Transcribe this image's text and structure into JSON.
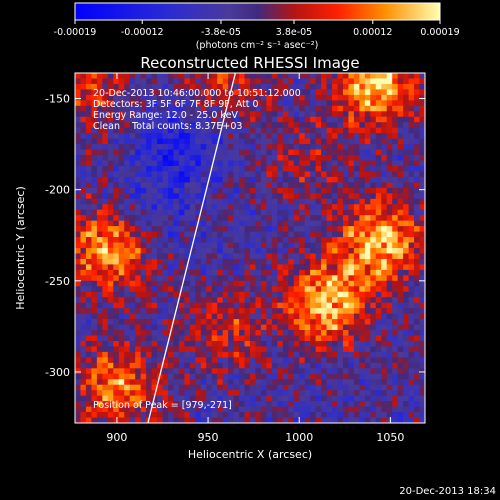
{
  "chart_data": {
    "type": "heatmap",
    "title": "Reconstructed RHESSI Image",
    "xlabel": "Heliocentric X (arcsec)",
    "ylabel": "Heliocentric Y (arcsec)",
    "xlim": [
      877,
      1069
    ],
    "ylim": [
      -328,
      -136
    ],
    "x_ticks": [
      900,
      950,
      1000,
      1050
    ],
    "y_ticks": [
      -150,
      -200,
      -250,
      -300
    ],
    "colorbar": {
      "ticks": [
        "-0.00019",
        "-0.00012",
        "-3.8e-05",
        "3.8e-05",
        "0.00012",
        "0.00019"
      ],
      "tick_values": [
        -0.00019,
        -0.00012,
        -3.8e-05,
        3.8e-05,
        0.00012,
        0.00019
      ],
      "range": [
        -0.00019,
        0.00019
      ],
      "unit_label": "(photons cm⁻² s⁻¹ asec⁻²)"
    },
    "info_lines": [
      "20-Dec-2013 10:46:00.000 to 10:51:12.000",
      "Detectors: 3F 5F 6F 7F 8F 9F, Att 0",
      "Energy Range: 12.0 - 25.0 keV",
      "Clean    Total counts: 8.37E+03"
    ],
    "peak_label": "Position of Peak = [979,-271]",
    "peak_position": [
      979,
      -271
    ],
    "limb_curve": {
      "x": [
        917,
        925,
        933,
        941,
        949,
        957,
        965
      ],
      "y": [
        -328,
        -296,
        -264,
        -232,
        -200,
        -168,
        -136
      ]
    },
    "sources": [
      {
        "x": 1015,
        "y": -262,
        "amp": 0.00019
      },
      {
        "x": 1045,
        "y": -228,
        "amp": 0.00018
      },
      {
        "x": 1042,
        "y": -142,
        "amp": 0.00019
      },
      {
        "x": 895,
        "y": -232,
        "amp": 0.00016
      },
      {
        "x": 900,
        "y": -308,
        "amp": 0.00014
      },
      {
        "x": 960,
        "y": -278,
        "amp": 8e-05
      },
      {
        "x": 1005,
        "y": -185,
        "amp": 6e-05
      },
      {
        "x": 960,
        "y": -140,
        "amp": 9e-05
      },
      {
        "x": 884,
        "y": -145,
        "amp": 9e-05
      },
      {
        "x": 935,
        "y": -175,
        "amp": -9e-05
      },
      {
        "x": 920,
        "y": -210,
        "amp": -5e-05
      }
    ]
  },
  "footer": {
    "timestamp": "20-Dec-2013 18:34"
  },
  "colors": {
    "background": "#000000",
    "axes": "#ffffff",
    "text": "#ffffff",
    "limb": "#ffffff"
  }
}
